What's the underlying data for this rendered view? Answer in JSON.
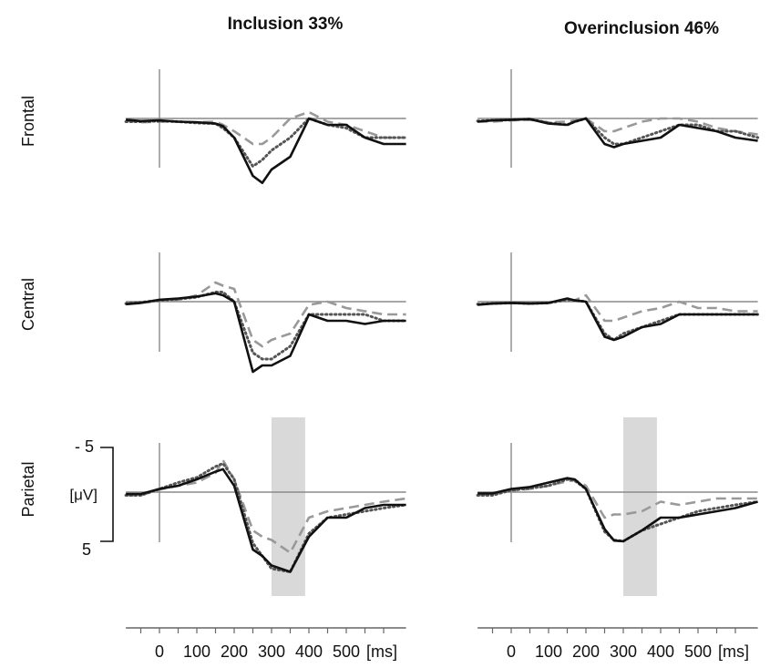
{
  "chart_data": {
    "type": "line",
    "columns": [
      {
        "title": "Inclusion 33%",
        "band_ms": [
          300,
          390
        ]
      },
      {
        "title": "Overinclusion 46%",
        "band_ms": [
          300,
          390
        ]
      }
    ],
    "rows": [
      "Frontal",
      "Central",
      "Parietal"
    ],
    "x_unit": "[ms]",
    "x_ticks": [
      0,
      100,
      200,
      300,
      400,
      500
    ],
    "xlim": [
      -90,
      660
    ],
    "y_unit": "[μV]",
    "y_scale_labels": [
      "- 5",
      "5"
    ],
    "y_scale_values": [
      -5,
      5
    ],
    "ylim": [
      -9,
      15
    ],
    "y_axis_inverted": true,
    "colors": {
      "solid": "#111111",
      "dotted": "#555555",
      "dashed": "#999999",
      "band": "#d9d9d9",
      "axis": "#8a8a8a"
    },
    "x": [
      -90,
      -50,
      0,
      50,
      100,
      150,
      170,
      200,
      250,
      275,
      300,
      350,
      400,
      450,
      500,
      550,
      600,
      660
    ],
    "panels": [
      {
        "col": 0,
        "row": 0,
        "solid": [
          0.2,
          0.4,
          0.3,
          0.5,
          0.6,
          0.8,
          1.2,
          3,
          9,
          10.1,
          8,
          6,
          0,
          1,
          1,
          3,
          4,
          4
        ],
        "dotted": [
          0.5,
          0.5,
          0.4,
          0.5,
          0.7,
          0.8,
          1.5,
          3,
          7.5,
          6.5,
          5,
          3,
          0,
          1,
          1.5,
          3,
          3,
          3
        ],
        "dashed": [
          0.3,
          0.6,
          0.5,
          0.5,
          0.6,
          0.5,
          1,
          2,
          4,
          4,
          3,
          0,
          -1,
          0.5,
          1,
          2,
          3,
          3
        ]
      },
      {
        "col": 1,
        "row": 0,
        "solid": [
          0.5,
          0.3,
          0.2,
          0.1,
          0.8,
          1,
          0.5,
          0,
          4,
          4.5,
          4,
          3.5,
          3,
          1,
          1.5,
          2,
          3,
          3.5
        ],
        "dotted": [
          0.4,
          0.3,
          0.2,
          0.1,
          0.7,
          1,
          0.5,
          0,
          3,
          4,
          4,
          3,
          2,
          1,
          1,
          2,
          2,
          3
        ],
        "dashed": [
          0.5,
          0.5,
          0.3,
          0.2,
          0.6,
          0.5,
          0.3,
          0,
          2,
          2,
          1.5,
          0.5,
          0,
          0,
          0.5,
          1.5,
          2,
          2.5
        ]
      },
      {
        "col": 0,
        "row": 1,
        "solid": [
          0.4,
          0.2,
          -0.3,
          -0.5,
          -0.8,
          -1.3,
          -1,
          0,
          11,
          10,
          10,
          8.5,
          2,
          3,
          3,
          3.5,
          3,
          3
        ],
        "dotted": [
          0.3,
          0.1,
          -0.2,
          -0.4,
          -0.7,
          -1.5,
          -1.5,
          0,
          8,
          9,
          9,
          7,
          2,
          2,
          2,
          2,
          3,
          3
        ],
        "dashed": [
          0.3,
          0.2,
          -0.1,
          -0.3,
          -1,
          -3,
          -2.5,
          -2,
          6,
          7,
          6,
          5,
          0.5,
          0,
          1,
          1.5,
          2,
          2
        ]
      },
      {
        "col": 1,
        "row": 1,
        "solid": [
          0.5,
          0.3,
          0.2,
          0.3,
          0.2,
          -0.5,
          -0.2,
          0,
          5.5,
          6,
          5.5,
          4,
          3.5,
          2,
          2,
          2,
          2,
          2
        ],
        "dotted": [
          0.4,
          0.3,
          0.2,
          0.3,
          0.2,
          -0.3,
          -0.2,
          0,
          5,
          6,
          5,
          4,
          3,
          2,
          2,
          2,
          2,
          2
        ],
        "dashed": [
          0.4,
          0.3,
          0.2,
          0.3,
          0.2,
          -0.4,
          -0.2,
          -1,
          3,
          3,
          2.5,
          1.5,
          1,
          0,
          1,
          1,
          1.5,
          1.5
        ]
      },
      {
        "col": 0,
        "row": 2,
        "solid": [
          0.3,
          0.3,
          -0.5,
          -1,
          -2,
          -3.2,
          -3.6,
          -1,
          9,
          10,
          11.5,
          12.5,
          7,
          4,
          4,
          2.5,
          2,
          2
        ],
        "dotted": [
          0.5,
          0.5,
          -0.5,
          -1.5,
          -2.3,
          -4,
          -4.5,
          -2,
          8,
          10,
          12,
          12.5,
          6.5,
          4,
          3.5,
          3,
          2.5,
          2
        ],
        "dashed": [
          0.5,
          0.5,
          -0.4,
          -1,
          -1.5,
          -3,
          -5,
          -2,
          6,
          7,
          7.5,
          9.5,
          4,
          3,
          2.5,
          2,
          1.5,
          1
        ]
      },
      {
        "col": 1,
        "row": 2,
        "solid": [
          0.2,
          0.2,
          -0.5,
          -0.8,
          -1.5,
          -2.2,
          -2,
          -0.5,
          5.8,
          7.6,
          7.7,
          6,
          4,
          4,
          3.5,
          3,
          2.5,
          1.5
        ],
        "dotted": [
          0.5,
          0.5,
          -0.3,
          -0.6,
          -1,
          -2,
          -1.8,
          -0.5,
          6.2,
          7.5,
          7.7,
          6,
          5,
          4,
          3,
          2.5,
          2,
          1.5
        ],
        "dashed": [
          0.5,
          0.3,
          -0.2,
          -0.5,
          -1,
          -1.7,
          -1.9,
          -1,
          4,
          3.5,
          3.5,
          3,
          1.5,
          2,
          1.5,
          1,
          1,
          1
        ]
      }
    ]
  }
}
